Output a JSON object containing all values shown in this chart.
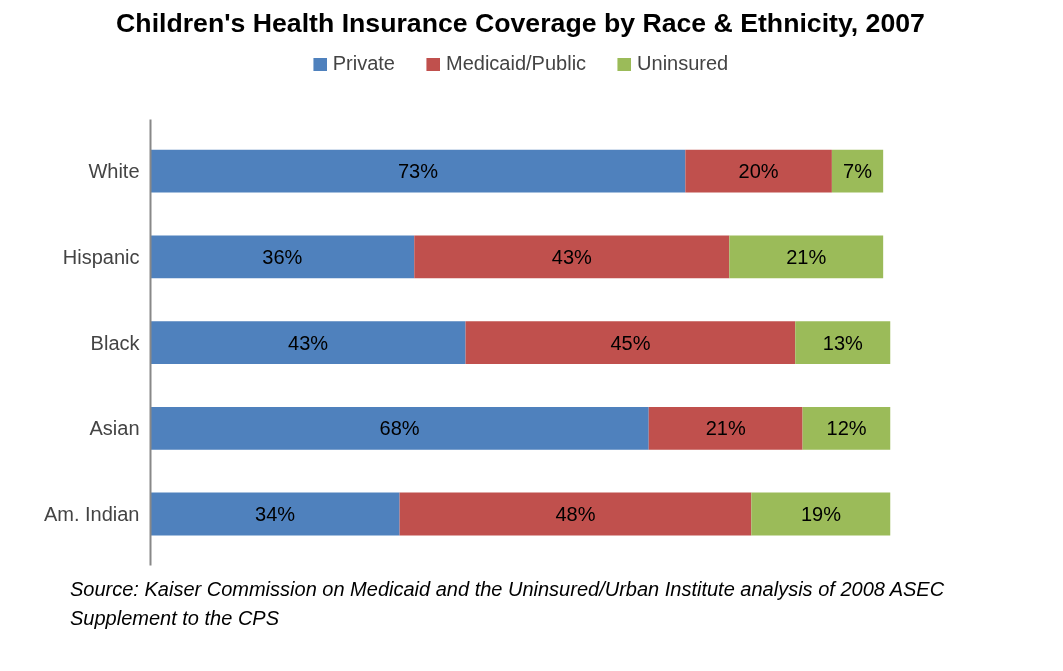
{
  "chart_data": {
    "type": "bar",
    "orientation": "horizontal",
    "stacked": true,
    "tick_labels": "y",
    "grid": false,
    "legend": "top",
    "title": "Children's Health Insurance Coverage by Race & Ethnicity, 2007",
    "categories": [
      "White",
      "Hispanic",
      "Black",
      "Asian",
      "Am. Indian"
    ],
    "series": [
      {
        "name": "Private",
        "color": "#4f81bd",
        "values": [
          73,
          36,
          43,
          68,
          34
        ],
        "value_labels": [
          "73%",
          "36%",
          "43%",
          "68%",
          "34%"
        ]
      },
      {
        "name": "Medicaid/Public",
        "color": "#c0504d",
        "values": [
          20,
          43,
          45,
          21,
          48
        ],
        "value_labels": [
          "20%",
          "43%",
          "45%",
          "21%",
          "48%"
        ]
      },
      {
        "name": "Uninsured",
        "color": "#9bbb59",
        "values": [
          7,
          21,
          13,
          12,
          19
        ],
        "value_labels": [
          "7%",
          "21%",
          "13%",
          "12%",
          "19%"
        ]
      }
    ],
    "annotations": [
      "Source: Kaiser Commission on Medicaid and the Uninsured/Urban Institute analysis of 2008 ASEC Supplement to the CPS"
    ]
  }
}
